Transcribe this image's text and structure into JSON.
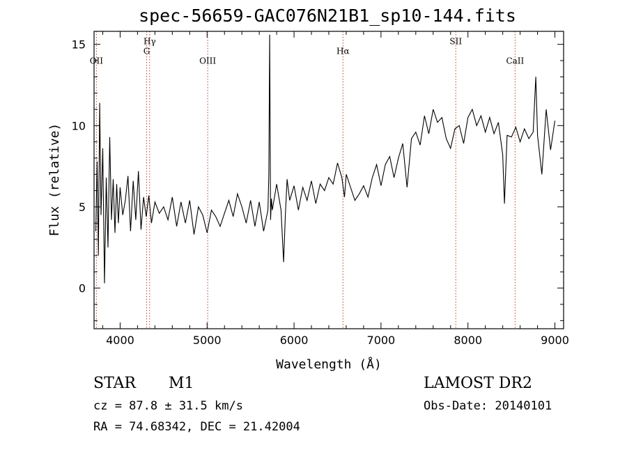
{
  "chart_data": {
    "type": "line",
    "title": "spec-56659-GAC076N21B1_sp10-144.fits",
    "xlabel": "Wavelength (Å)",
    "ylabel": "Flux (relative)",
    "xlim": [
      3700,
      9100
    ],
    "ylim": [
      -2.5,
      15.8
    ],
    "xticks": [
      4000,
      5000,
      6000,
      7000,
      8000,
      9000
    ],
    "xtick_labels": [
      "4000",
      "5000",
      "6000",
      "7000",
      "8000",
      "9000"
    ],
    "yticks": [
      0,
      5,
      10,
      15
    ],
    "ytick_labels": [
      "0",
      "5",
      "10",
      "15"
    ],
    "grid": false,
    "line_color": "#000000",
    "marker_line_color": "#c0392b",
    "lines": [
      {
        "label": "OII",
        "x": 3727,
        "label_y": 13.8
      },
      {
        "label": "Hγ",
        "x": 4340,
        "label_y": 15.0
      },
      {
        "label": "G",
        "x": 4305,
        "label_y": 14.4
      },
      {
        "label": "OIII",
        "x": 5007,
        "label_y": 13.8
      },
      {
        "label": "Hα",
        "x": 6563,
        "label_y": 14.4
      },
      {
        "label": "SII",
        "x": 7860,
        "label_y": 15.0
      },
      {
        "label": "CaII",
        "x": 8542,
        "label_y": 13.8
      }
    ],
    "spectrum": {
      "x": [
        3720,
        3735,
        3750,
        3765,
        3780,
        3800,
        3820,
        3840,
        3860,
        3880,
        3900,
        3920,
        3940,
        3960,
        3980,
        4000,
        4030,
        4060,
        4090,
        4120,
        4150,
        4180,
        4210,
        4240,
        4270,
        4300,
        4330,
        4360,
        4400,
        4450,
        4500,
        4550,
        4600,
        4650,
        4700,
        4750,
        4800,
        4850,
        4900,
        4950,
        5000,
        5050,
        5100,
        5150,
        5200,
        5250,
        5300,
        5350,
        5400,
        5450,
        5500,
        5550,
        5600,
        5650,
        5700,
        5710,
        5720,
        5730,
        5740,
        5750,
        5800,
        5850,
        5880,
        5900,
        5920,
        5950,
        6000,
        6050,
        6100,
        6150,
        6200,
        6250,
        6300,
        6350,
        6400,
        6450,
        6500,
        6550,
        6580,
        6600,
        6650,
        6700,
        6750,
        6800,
        6850,
        6900,
        6950,
        7000,
        7050,
        7100,
        7150,
        7200,
        7250,
        7300,
        7350,
        7400,
        7450,
        7500,
        7550,
        7600,
        7650,
        7700,
        7750,
        7800,
        7850,
        7900,
        7950,
        8000,
        8050,
        8100,
        8150,
        8200,
        8250,
        8300,
        8350,
        8400,
        8420,
        8450,
        8500,
        8550,
        8600,
        8650,
        8700,
        8750,
        8780,
        8800,
        8850,
        8900,
        8950,
        9000
      ],
      "y": [
        3.5,
        7.8,
        2.0,
        11.4,
        4.5,
        8.6,
        0.3,
        6.8,
        2.5,
        9.3,
        4.2,
        6.7,
        3.4,
        6.4,
        4.0,
        6.2,
        4.5,
        5.4,
        6.9,
        3.5,
        6.6,
        4.2,
        7.2,
        3.6,
        5.6,
        4.4,
        5.7,
        4.0,
        5.3,
        4.6,
        5.0,
        4.2,
        5.6,
        3.8,
        5.3,
        4.0,
        5.4,
        3.3,
        5.0,
        4.5,
        3.4,
        4.8,
        4.4,
        3.8,
        4.6,
        5.4,
        4.4,
        5.8,
        5.0,
        4.0,
        5.4,
        3.8,
        5.3,
        3.5,
        4.8,
        7.0,
        15.6,
        4.2,
        5.5,
        4.8,
        6.4,
        4.8,
        1.6,
        4.5,
        6.7,
        5.4,
        6.3,
        4.8,
        6.2,
        5.4,
        6.6,
        5.2,
        6.4,
        6.0,
        6.8,
        6.4,
        7.7,
        6.8,
        5.6,
        7.0,
        6.2,
        5.4,
        5.8,
        6.3,
        5.6,
        6.8,
        7.6,
        6.3,
        7.6,
        8.1,
        6.8,
        8.0,
        8.9,
        6.2,
        9.2,
        9.6,
        8.8,
        10.6,
        9.5,
        11.0,
        10.2,
        10.5,
        9.2,
        8.6,
        9.8,
        10.0,
        8.9,
        10.5,
        11.0,
        10.0,
        10.6,
        9.6,
        10.5,
        9.5,
        10.2,
        8.2,
        5.2,
        9.4,
        9.3,
        9.9,
        9.0,
        9.8,
        9.2,
        9.6,
        13.0,
        9.4,
        7.0,
        11.0,
        8.5,
        10.3
      ]
    }
  },
  "footer": {
    "object_type": "STAR",
    "subclass": "M1",
    "survey": "LAMOST DR2",
    "cz": "cz = 87.8 ± 31.5 km/s",
    "obs_date": "Obs-Date: 20140101",
    "radec": "RA =  74.68342, DEC =  21.42004"
  }
}
